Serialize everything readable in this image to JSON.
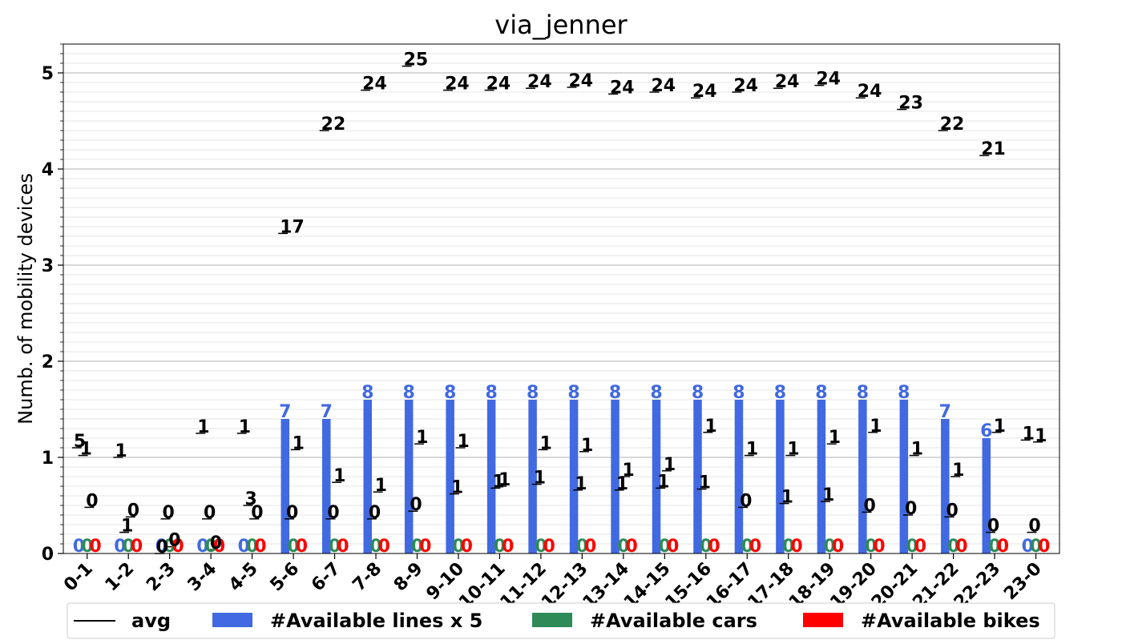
{
  "chart_data": {
    "type": "bar",
    "title": "via_jenner",
    "ylabel": "Numb. of mobility devices",
    "xlabel": "",
    "ylim": [
      0,
      5.3
    ],
    "yticks": [
      0,
      1,
      2,
      3,
      4,
      5
    ],
    "grid": "horizontal major and minor",
    "categories": [
      "0-1",
      "1-2",
      "2-3",
      "3-4",
      "4-5",
      "5-6",
      "6-7",
      "7-8",
      "8-9",
      "9-10",
      "10-11",
      "11-12",
      "12-13",
      "13-14",
      "14-15",
      "15-16",
      "16-17",
      "17-18",
      "18-19",
      "19-20",
      "20-21",
      "21-22",
      "22-23",
      "23-0"
    ],
    "series": [
      {
        "name": "#Available lines x 5",
        "color": "#4169e1",
        "values": [
          0,
          0,
          0,
          0,
          0,
          1.4,
          1.4,
          1.6,
          1.6,
          1.6,
          1.6,
          1.6,
          1.6,
          1.6,
          1.6,
          1.6,
          1.6,
          1.6,
          1.6,
          1.6,
          1.6,
          1.4,
          1.2,
          0
        ],
        "labels": [
          "0",
          "0",
          "0",
          "0",
          "0",
          "7",
          "7",
          "8",
          "8",
          "8",
          "8",
          "8",
          "8",
          "8",
          "8",
          "8",
          "8",
          "8",
          "8",
          "8",
          "8",
          "7",
          "6",
          "0"
        ]
      },
      {
        "name": "#Available cars",
        "color": "#2e8b57",
        "values": [
          0,
          0,
          0,
          0,
          0,
          0,
          0,
          0,
          0,
          0,
          0,
          0,
          0,
          0,
          0,
          0,
          0,
          0,
          0,
          0,
          0,
          0,
          0,
          0
        ],
        "labels": [
          "0",
          "0",
          "0",
          "0",
          "0",
          "0",
          "0",
          "0",
          "0",
          "0",
          "0",
          "0",
          "0",
          "0",
          "0",
          "0",
          "0",
          "0",
          "0",
          "0",
          "0",
          "0",
          "0",
          "0"
        ]
      },
      {
        "name": "#Available bikes",
        "color": "#ff0000",
        "values": [
          0,
          0,
          0,
          0,
          0,
          0,
          0,
          0,
          0,
          0,
          0,
          0,
          0,
          0,
          0,
          0,
          0,
          0,
          0,
          0,
          0,
          0,
          0,
          0
        ],
        "labels": [
          "0",
          "0",
          "0",
          "0",
          "0",
          "0",
          "0",
          "0",
          "0",
          "0",
          "0",
          "0",
          "0",
          "0",
          "0",
          "0",
          "0",
          "0",
          "0",
          "0",
          "0",
          "0",
          "0",
          "0"
        ]
      }
    ],
    "avg_lines": [
      {
        "name": "avg",
        "values": [
          1.1,
          1.0,
          0.0,
          1.25,
          1.25,
          3.33,
          4.4,
          4.82,
          5.07,
          4.82,
          4.82,
          4.84,
          4.85,
          4.78,
          4.8,
          4.74,
          4.8,
          4.84,
          4.87,
          4.74,
          4.62,
          4.4,
          4.14,
          1.18
        ],
        "labels": [
          "5",
          "1",
          "0",
          "1",
          "1",
          "17",
          "22",
          "24",
          "25",
          "24",
          "24",
          "24",
          "24",
          "24",
          "24",
          "24",
          "24",
          "24",
          "24",
          "24",
          "23",
          "22",
          "21",
          "1"
        ],
        "offset": -0.25
      },
      {
        "name": "avg",
        "values": [
          1.02,
          0.22,
          0.36,
          0.36,
          0.5,
          0.36,
          0.36,
          0.36,
          0.44,
          0.62,
          0.68,
          0.72,
          0.66,
          0.66,
          0.68,
          0.67,
          0.48,
          0.52,
          0.54,
          0.43,
          0.4,
          0.38,
          0.22,
          0.22
        ],
        "labels": [
          "1",
          "1",
          "0",
          "0",
          "3",
          "0",
          "0",
          "0",
          "0",
          "1",
          "1",
          "1",
          "1",
          "1",
          "1",
          "1",
          "0",
          "1",
          "1",
          "0",
          "0",
          "0",
          "0",
          "0"
        ],
        "offset": -0.1
      },
      {
        "name": "avg",
        "values": [
          0.48,
          0.38,
          0.07,
          0.04,
          0.36,
          1.08,
          0.74,
          0.64,
          1.14,
          1.1,
          0.7,
          1.08,
          1.06,
          0.8,
          0.86,
          1.26,
          1.02,
          1.02,
          1.14,
          1.26,
          1.02,
          0.8,
          1.26,
          1.16
        ],
        "labels": [
          "0",
          "0",
          "0",
          "0",
          "0",
          "1",
          "1",
          "1",
          "1",
          "1",
          "1",
          "1",
          "1",
          "1",
          "1",
          "1",
          "1",
          "1",
          "1",
          "1",
          "1",
          "1",
          "1",
          "1"
        ],
        "offset": 0.05
      }
    ],
    "legend": {
      "position": "bottom-center",
      "entries": [
        {
          "label": "avg",
          "color": "#000000",
          "kind": "line"
        },
        {
          "label": "#Available lines x 5",
          "color": "#4169e1",
          "kind": "bar"
        },
        {
          "label": "#Available cars",
          "color": "#2e8b57",
          "kind": "bar"
        },
        {
          "label": "#Available bikes",
          "color": "#ff0000",
          "kind": "bar"
        }
      ]
    }
  }
}
